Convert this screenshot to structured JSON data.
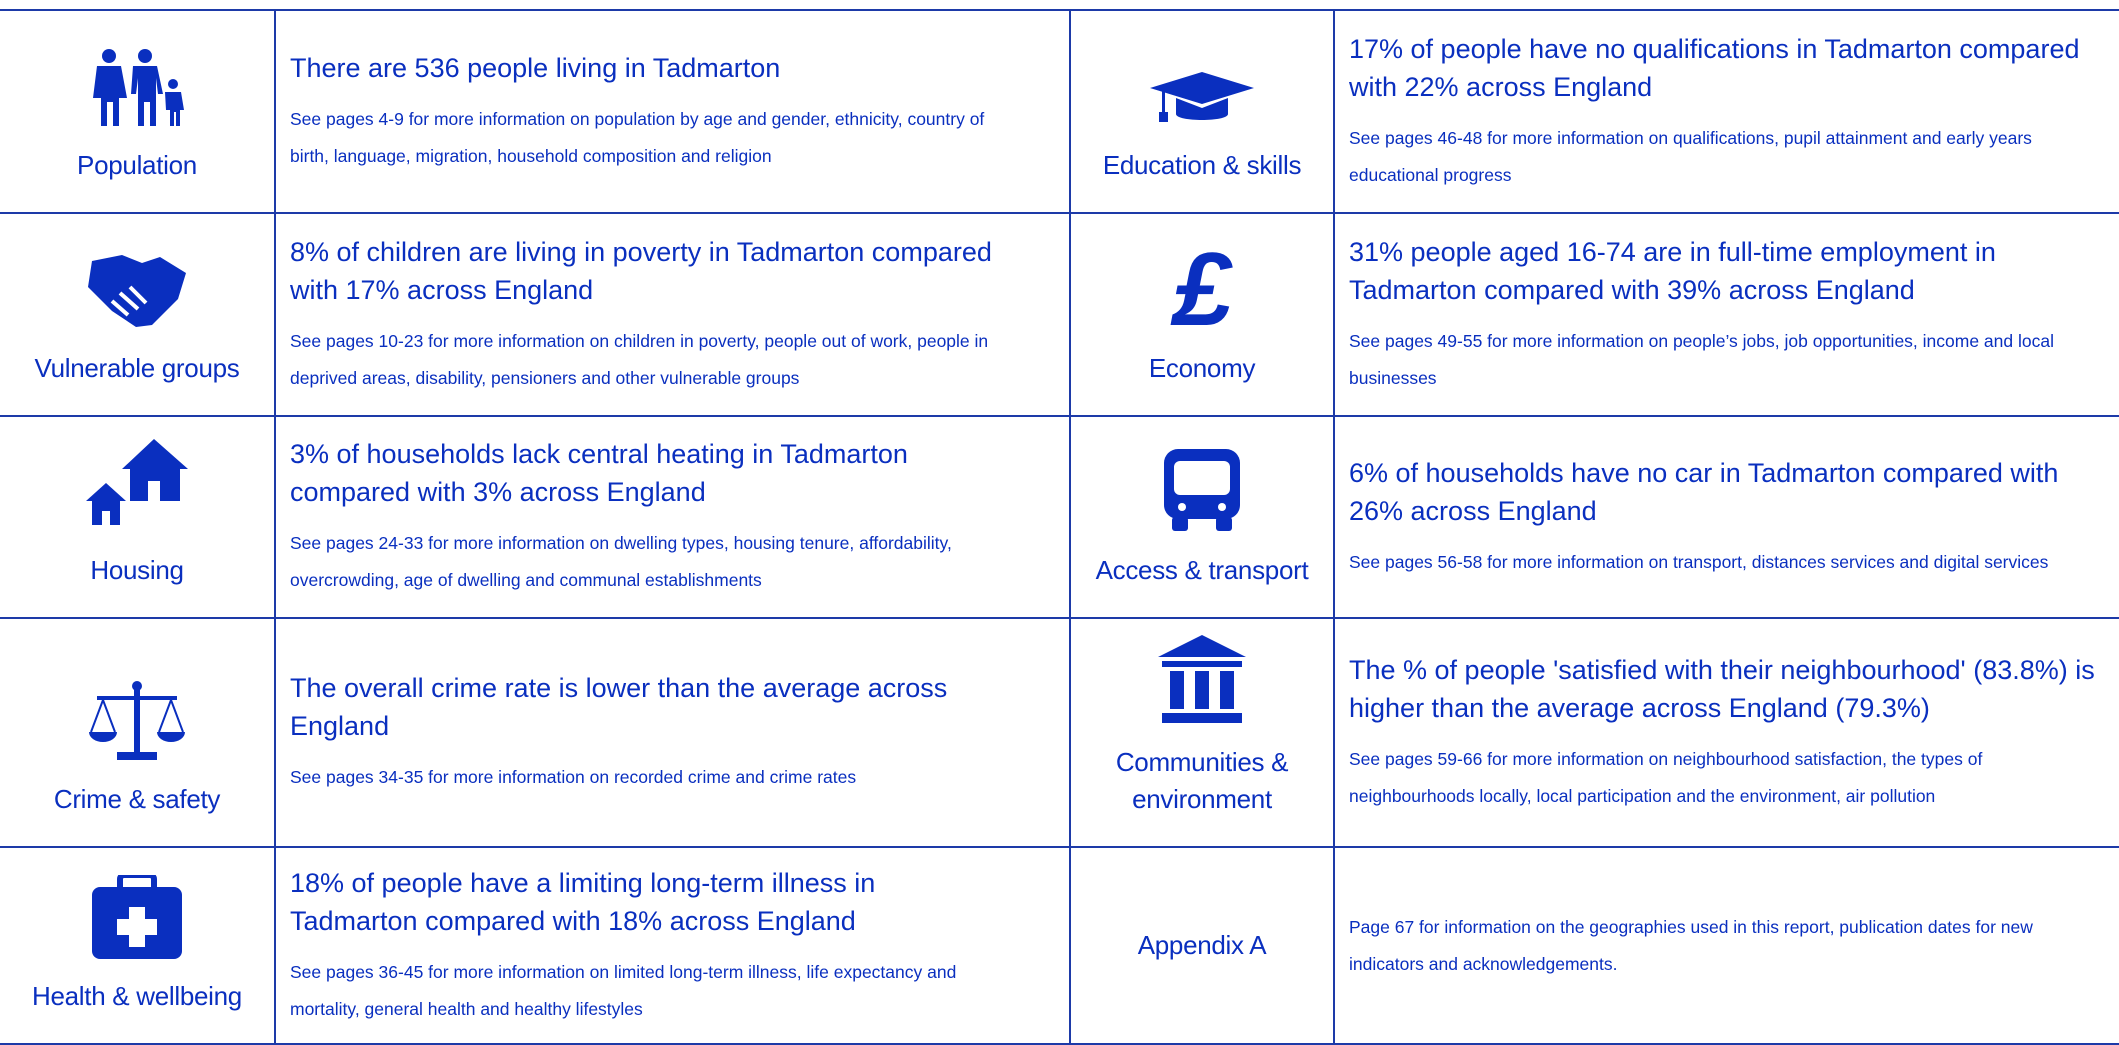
{
  "rows": [
    {
      "cells": [
        {
          "label": "Population",
          "headline": "There are 536 people living in Tadmarton",
          "detail": "See pages 4-9 for more information on population by age and gender, ethnicity, country of birth, language, migration, household composition and religion"
        },
        {
          "label": "Education & skills",
          "headline": "17% of people have no qualifications in Tadmarton compared with 22% across England",
          "detail": "See pages 46-48 for more information on qualifications, pupil attainment and early years educational progress"
        }
      ]
    },
    {
      "cells": [
        {
          "label": "Vulnerable groups",
          "headline": "8% of children are living in poverty in Tadmarton compared with 17% across England",
          "detail": "See pages 10-23 for more information on children in poverty, people out of work, people in deprived areas, disability, pensioners and other vulnerable groups"
        },
        {
          "label": "Economy",
          "headline": "31% people aged 16-74 are in full-time employment in Tadmarton compared with 39% across England",
          "detail": "See pages 49-55 for more information on people’s jobs, job opportunities, income and local businesses"
        }
      ]
    },
    {
      "cells": [
        {
          "label": "Housing",
          "headline": "3% of households lack central heating in Tadmarton compared with 3% across England",
          "detail": "See pages 24-33 for more information on dwelling types, housing tenure, affordability, overcrowding, age of dwelling and communal establishments"
        },
        {
          "label": "Access & transport",
          "headline": "6% of households have no car in Tadmarton compared with 26% across England",
          "detail": "See pages 56-58 for more information on transport, distances services and digital services"
        }
      ]
    },
    {
      "cells": [
        {
          "label": "Crime & safety",
          "headline": "The overall crime rate is lower than the average across England",
          "detail": "See pages 34-35 for more information on recorded crime and crime rates"
        },
        {
          "label": "Communities & environment",
          "headline": "The % of people 'satisfied with their neighbourhood' (83.8%) is higher than the average across England (79.3%)",
          "detail": "See pages 59-66 for more information on neighbourhood satisfaction, the types of neighbourhoods locally, local participation and the environment, air pollution"
        }
      ]
    },
    {
      "cells": [
        {
          "label": "Health & wellbeing",
          "headline": "18% of people have a limiting long-term illness in Tadmarton compared with 18% across England",
          "detail": "See pages 36-45 for more information on limited long-term illness, life expectancy and mortality, general health and healthy lifestyles"
        },
        {
          "label": "Appendix A",
          "detail": "Page 67 for information on the geographies used in this report, publication dates for new indicators and acknowledgements."
        }
      ]
    }
  ]
}
